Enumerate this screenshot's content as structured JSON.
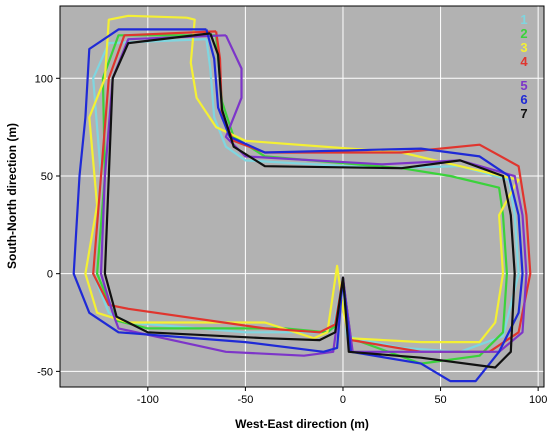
{
  "chart_data": {
    "type": "line",
    "xlabel": "West-East direction (m)",
    "ylabel": "South-North direction (m)",
    "xlim": [
      -145,
      103
    ],
    "ylim": [
      -58,
      137
    ],
    "x_ticks": [
      -100,
      -50,
      0,
      50,
      100
    ],
    "y_ticks": [
      -50,
      0,
      50,
      100
    ],
    "grid": true,
    "legend_position": "top-right",
    "series": [
      {
        "name": "1",
        "color": "#7fd6e0",
        "points": [
          [
            -70,
            120
          ],
          [
            -120,
            118
          ],
          [
            -128,
            100
          ],
          [
            -124,
            50
          ],
          [
            -128,
            0
          ],
          [
            -120,
            -20
          ],
          [
            -110,
            -25
          ],
          [
            -50,
            -30
          ],
          [
            -12,
            -30
          ],
          [
            -5,
            -28
          ],
          [
            0,
            -2
          ],
          [
            2,
            -32
          ],
          [
            30,
            -38
          ],
          [
            60,
            -40
          ],
          [
            82,
            -32
          ],
          [
            90,
            0
          ],
          [
            88,
            30
          ],
          [
            85,
            48
          ],
          [
            60,
            55
          ],
          [
            20,
            54
          ],
          [
            -50,
            58
          ],
          [
            -60,
            65
          ],
          [
            -66,
            80
          ],
          [
            -68,
            105
          ],
          [
            -70,
            120
          ]
        ]
      },
      {
        "name": "2",
        "color": "#3bd23b",
        "points": [
          [
            -65,
            122
          ],
          [
            -115,
            122
          ],
          [
            -123,
            100
          ],
          [
            -122,
            50
          ],
          [
            -126,
            0
          ],
          [
            -116,
            -24
          ],
          [
            -100,
            -28
          ],
          [
            -30,
            -28
          ],
          [
            -8,
            -30
          ],
          [
            -3,
            -26
          ],
          [
            0,
            -3
          ],
          [
            4,
            -33
          ],
          [
            40,
            -46
          ],
          [
            70,
            -42
          ],
          [
            82,
            -30
          ],
          [
            84,
            0
          ],
          [
            82,
            30
          ],
          [
            80,
            44
          ],
          [
            55,
            50
          ],
          [
            30,
            54
          ],
          [
            -40,
            60
          ],
          [
            -56,
            70
          ],
          [
            -62,
            88
          ],
          [
            -64,
            110
          ],
          [
            -65,
            122
          ]
        ]
      },
      {
        "name": "3",
        "color": "#f4f034",
        "points": [
          [
            -80,
            131
          ],
          [
            -110,
            132
          ],
          [
            -120,
            130
          ],
          [
            -122,
            100
          ],
          [
            -130,
            80
          ],
          [
            -126,
            35
          ],
          [
            -132,
            0
          ],
          [
            -126,
            -20
          ],
          [
            -110,
            -25
          ],
          [
            -40,
            -25
          ],
          [
            -15,
            -33
          ],
          [
            -8,
            -30
          ],
          [
            -3,
            4
          ],
          [
            0,
            -18
          ],
          [
            3,
            -33
          ],
          [
            40,
            -35
          ],
          [
            70,
            -35
          ],
          [
            78,
            -25
          ],
          [
            82,
            0
          ],
          [
            80,
            30
          ],
          [
            88,
            45
          ],
          [
            90,
            48
          ],
          [
            60,
            55
          ],
          [
            30,
            62
          ],
          [
            -50,
            68
          ],
          [
            -65,
            75
          ],
          [
            -75,
            90
          ],
          [
            -78,
            108
          ],
          [
            -76,
            130
          ],
          [
            -80,
            131
          ]
        ]
      },
      {
        "name": "4",
        "color": "#e0352e",
        "points": [
          [
            -65,
            124
          ],
          [
            -112,
            122
          ],
          [
            -120,
            100
          ],
          [
            -124,
            50
          ],
          [
            -128,
            0
          ],
          [
            -120,
            -16
          ],
          [
            -110,
            -18
          ],
          [
            -40,
            -28
          ],
          [
            -12,
            -30
          ],
          [
            -4,
            -26
          ],
          [
            0,
            -2
          ],
          [
            4,
            -34
          ],
          [
            40,
            -40
          ],
          [
            75,
            -40
          ],
          [
            90,
            -30
          ],
          [
            96,
            0
          ],
          [
            94,
            30
          ],
          [
            90,
            55
          ],
          [
            70,
            66
          ],
          [
            30,
            62
          ],
          [
            -40,
            62
          ],
          [
            -56,
            68
          ],
          [
            -62,
            80
          ],
          [
            -63,
            110
          ],
          [
            -65,
            124
          ]
        ]
      },
      {
        "name": "5",
        "color": "#7d35c9",
        "points": [
          [
            -60,
            122
          ],
          [
            -110,
            120
          ],
          [
            -118,
            100
          ],
          [
            -122,
            50
          ],
          [
            -124,
            0
          ],
          [
            -118,
            -20
          ],
          [
            -115,
            -28
          ],
          [
            -60,
            -40
          ],
          [
            -20,
            -42
          ],
          [
            -5,
            -40
          ],
          [
            0,
            -3
          ],
          [
            5,
            -40
          ],
          [
            40,
            -40
          ],
          [
            80,
            -40
          ],
          [
            92,
            -30
          ],
          [
            94,
            0
          ],
          [
            92,
            30
          ],
          [
            88,
            50
          ],
          [
            60,
            58
          ],
          [
            20,
            56
          ],
          [
            -50,
            60
          ],
          [
            -60,
            70
          ],
          [
            -52,
            90
          ],
          [
            -52,
            105
          ],
          [
            -60,
            122
          ]
        ]
      },
      {
        "name": "6",
        "color": "#1f2ad6",
        "points": [
          [
            -70,
            125
          ],
          [
            -115,
            125
          ],
          [
            -130,
            115
          ],
          [
            -132,
            80
          ],
          [
            -135,
            50
          ],
          [
            -138,
            0
          ],
          [
            -130,
            -20
          ],
          [
            -115,
            -30
          ],
          [
            -50,
            -35
          ],
          [
            -10,
            -40
          ],
          [
            -3,
            -38
          ],
          [
            0,
            -2
          ],
          [
            4,
            -40
          ],
          [
            40,
            -46
          ],
          [
            55,
            -55
          ],
          [
            68,
            -55
          ],
          [
            80,
            -40
          ],
          [
            90,
            -20
          ],
          [
            92,
            0
          ],
          [
            90,
            30
          ],
          [
            85,
            50
          ],
          [
            70,
            60
          ],
          [
            40,
            64
          ],
          [
            -40,
            62
          ],
          [
            -58,
            70
          ],
          [
            -64,
            85
          ],
          [
            -66,
            110
          ],
          [
            -70,
            125
          ]
        ]
      },
      {
        "name": "7",
        "color": "#111111",
        "points": [
          [
            -68,
            123
          ],
          [
            -110,
            118
          ],
          [
            -118,
            100
          ],
          [
            -120,
            50
          ],
          [
            -122,
            0
          ],
          [
            -116,
            -22
          ],
          [
            -100,
            -30
          ],
          [
            -40,
            -33
          ],
          [
            -12,
            -34
          ],
          [
            -4,
            -30
          ],
          [
            0,
            -2
          ],
          [
            3,
            -40
          ],
          [
            40,
            -43
          ],
          [
            78,
            -48
          ],
          [
            86,
            -40
          ],
          [
            88,
            0
          ],
          [
            86,
            30
          ],
          [
            82,
            50
          ],
          [
            60,
            58
          ],
          [
            30,
            54
          ],
          [
            -40,
            55
          ],
          [
            -56,
            65
          ],
          [
            -62,
            84
          ],
          [
            -64,
            112
          ],
          [
            -68,
            123
          ]
        ]
      }
    ]
  }
}
